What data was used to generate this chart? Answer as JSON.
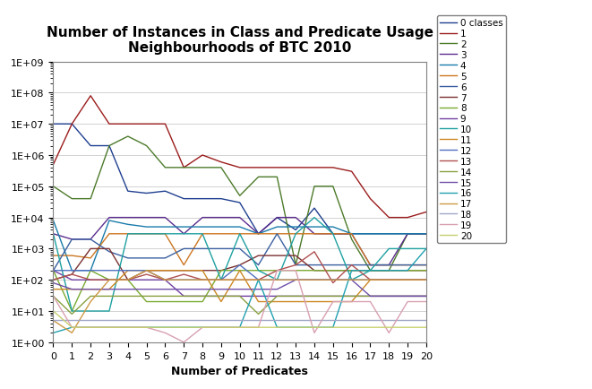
{
  "title": "Number of Instances in Class and Predicate Usage\nNeighbourhoods of BTC 2010",
  "xlabel": "Number of Predicates",
  "xlim": [
    0,
    20
  ],
  "ylim": [
    1,
    1000000000.0
  ],
  "x": [
    0,
    1,
    2,
    3,
    4,
    5,
    6,
    7,
    8,
    9,
    10,
    11,
    12,
    13,
    14,
    15,
    16,
    17,
    18,
    19,
    20
  ],
  "series_order": [
    "0 classes",
    "1",
    "2",
    "3",
    "4",
    "5",
    "6",
    "7",
    "8",
    "9",
    "10",
    "11",
    "12",
    "13",
    "14",
    "15",
    "16",
    "17",
    "18",
    "19",
    "20"
  ],
  "series": {
    "0 classes": {
      "color": "#1F3F8F",
      "data": [
        10000000.0,
        10000000.0,
        2000000.0,
        2000000.0,
        70000.0,
        60000.0,
        70000.0,
        40000.0,
        40000.0,
        40000.0,
        30000.0,
        3000.0,
        10000.0,
        4000.0,
        20000.0,
        3000.0,
        3000.0,
        3000.0,
        3000.0,
        3000.0,
        3000.0
      ]
    },
    "1": {
      "color": "#9B1C1C",
      "data": [
        500000.0,
        10000000.0,
        80000000.0,
        10000000.0,
        10000000.0,
        10000000.0,
        10000000.0,
        400000.0,
        1000000.0,
        600000.0,
        400000.0,
        400000.0,
        400000.0,
        400000.0,
        400000.0,
        400000.0,
        300000.0,
        40000.0,
        10000.0,
        10000.0,
        15000.0
      ]
    },
    "2": {
      "color": "#4C7A2A",
      "data": [
        100000.0,
        40000.0,
        40000.0,
        2000000.0,
        4000000.0,
        2000000.0,
        400000.0,
        400000.0,
        400000.0,
        400000.0,
        50000.0,
        200000.0,
        200000.0,
        300.0,
        100000.0,
        100000.0,
        2000.0,
        200.0,
        200.0,
        3000.0,
        3000.0
      ]
    },
    "3": {
      "color": "#5B2D8E",
      "data": [
        3000.0,
        2000.0,
        2000.0,
        10000.0,
        10000.0,
        10000.0,
        10000.0,
        3000.0,
        10000.0,
        10000.0,
        10000.0,
        3000.0,
        10000.0,
        10000.0,
        3000.0,
        3000.0,
        3000.0,
        300.0,
        300.0,
        3000.0,
        3000.0
      ]
    },
    "4": {
      "color": "#1A7BAA",
      "data": [
        8000.0,
        200.0,
        200.0,
        8000.0,
        6000.0,
        5000.0,
        5000.0,
        5000.0,
        5000.0,
        5000.0,
        5000.0,
        3000.0,
        5000.0,
        5000.0,
        5000.0,
        5000.0,
        3000.0,
        3000.0,
        3000.0,
        3000.0,
        3000.0
      ]
    },
    "5": {
      "color": "#CC7722",
      "data": [
        600.0,
        600.0,
        500.0,
        3000.0,
        3000.0,
        3000.0,
        3000.0,
        300.0,
        3000.0,
        3000.0,
        3000.0,
        3000.0,
        3000.0,
        3000.0,
        3000.0,
        3000.0,
        3000.0,
        300.0,
        300.0,
        300.0,
        300.0
      ]
    },
    "6": {
      "color": "#3A5FA0",
      "data": [
        200.0,
        2000.0,
        2000.0,
        800.0,
        500.0,
        500.0,
        500.0,
        1000.0,
        1000.0,
        1000.0,
        1000.0,
        300.0,
        3000.0,
        300.0,
        300.0,
        300.0,
        300.0,
        300.0,
        300.0,
        300.0,
        300.0
      ]
    },
    "7": {
      "color": "#7B3030",
      "data": [
        100.0,
        150.0,
        1000.0,
        1000.0,
        100.0,
        200.0,
        200.0,
        200.0,
        200.0,
        200.0,
        300.0,
        600.0,
        600.0,
        600.0,
        200.0,
        200.0,
        200.0,
        200.0,
        200.0,
        200.0,
        200.0
      ]
    },
    "8": {
      "color": "#7AAA30",
      "data": [
        200.0,
        10.0,
        200.0,
        100.0,
        100.0,
        20.0,
        20.0,
        20.0,
        20.0,
        200.0,
        200.0,
        200.0,
        200.0,
        200.0,
        200.0,
        200.0,
        200.0,
        200.0,
        200.0,
        200.0,
        200.0
      ]
    },
    "9": {
      "color": "#7040A0",
      "data": [
        200.0,
        100.0,
        100.0,
        100.0,
        100.0,
        100.0,
        100.0,
        30.0,
        30.0,
        30.0,
        30.0,
        30.0,
        30.0,
        30.0,
        30.0,
        30.0,
        30.0,
        30.0,
        30.0,
        30.0,
        30.0
      ]
    },
    "10": {
      "color": "#1FA0A0",
      "data": [
        3000.0,
        10.0,
        10.0,
        10.0,
        3000.0,
        3000.0,
        3000.0,
        3000.0,
        3000.0,
        100.0,
        3000.0,
        200.0,
        100.0,
        3000.0,
        10000.0,
        3000.0,
        100.0,
        200.0,
        1000.0,
        1000.0,
        1000.0
      ]
    },
    "11": {
      "color": "#CC8822",
      "data": [
        50.0,
        50.0,
        50.0,
        50.0,
        200.0,
        200.0,
        200.0,
        200.0,
        200.0,
        20.0,
        200.0,
        20.0,
        20.0,
        20.0,
        20.0,
        20.0,
        20.0,
        100.0,
        100.0,
        100.0,
        100.0
      ]
    },
    "12": {
      "color": "#5070C0",
      "data": [
        200.0,
        200.0,
        200.0,
        200.0,
        200.0,
        200.0,
        100.0,
        100.0,
        100.0,
        100.0,
        300.0,
        100.0,
        100.0,
        100.0,
        100.0,
        100.0,
        100.0,
        100.0,
        100.0,
        100.0,
        100.0
      ]
    },
    "13": {
      "color": "#B05050",
      "data": [
        100.0,
        150.0,
        100.0,
        100.0,
        100.0,
        150.0,
        100.0,
        150.0,
        100.0,
        100.0,
        100.0,
        100.0,
        200.0,
        300.0,
        800.0,
        80.0,
        300.0,
        100.0,
        100.0,
        100.0,
        100.0
      ]
    },
    "14": {
      "color": "#88A040",
      "data": [
        30.0,
        8.0,
        30.0,
        30.0,
        30.0,
        30.0,
        30.0,
        30.0,
        30.0,
        30.0,
        30.0,
        8.0,
        30.0,
        30.0,
        30.0,
        30.0,
        30.0,
        30.0,
        30.0,
        30.0,
        30.0
      ]
    },
    "15": {
      "color": "#7050A8",
      "data": [
        80.0,
        50.0,
        50.0,
        50.0,
        50.0,
        50.0,
        50.0,
        50.0,
        50.0,
        50.0,
        50.0,
        50.0,
        50.0,
        100.0,
        100.0,
        100.0,
        100.0,
        30.0,
        30.0,
        30.0,
        30.0
      ]
    },
    "16": {
      "color": "#20A0B0",
      "data": [
        2.0,
        3.0,
        3.0,
        3.0,
        3.0,
        3.0,
        3.0,
        3.0,
        3.0,
        3.0,
        3.0,
        100.0,
        3.0,
        3.0,
        3.0,
        3.0,
        200.0,
        200.0,
        200.0,
        200.0,
        1000.0
      ]
    },
    "17": {
      "color": "#CC9944",
      "data": [
        5.0,
        2.0,
        20.0,
        100.0,
        100.0,
        200.0,
        100.0,
        100.0,
        100.0,
        100.0,
        100.0,
        100.0,
        100.0,
        100.0,
        100.0,
        100.0,
        100.0,
        100.0,
        100.0,
        100.0,
        100.0
      ]
    },
    "18": {
      "color": "#A0A8C8",
      "data": [
        5.0,
        5.0,
        5.0,
        5.0,
        5.0,
        5.0,
        5.0,
        5.0,
        5.0,
        5.0,
        5.0,
        5.0,
        5.0,
        5.0,
        5.0,
        5.0,
        5.0,
        5.0,
        5.0,
        5.0,
        5.0
      ]
    },
    "19": {
      "color": "#D8A0B0",
      "data": [
        30.0,
        3.0,
        3.0,
        3.0,
        3.0,
        3.0,
        2.0,
        1.0,
        3.0,
        3.0,
        3.0,
        3.0,
        200.0,
        200.0,
        2.0,
        20.0,
        20.0,
        20.0,
        2.0,
        20.0,
        20.0
      ]
    },
    "20": {
      "color": "#C8D070",
      "data": [
        10.0,
        3.0,
        3.0,
        3.0,
        3.0,
        3.0,
        3.0,
        3.0,
        3.0,
        3.0,
        3.0,
        3.0,
        3.0,
        3.0,
        3.0,
        3.0,
        3.0,
        3.0,
        3.0,
        3.0,
        3.0
      ]
    }
  },
  "bg_color": "#FFFFFF",
  "plot_bg_color": "#FFFFFF",
  "grid_color": "#C0C0C0",
  "title_fontsize": 11,
  "axis_label_fontsize": 9,
  "tick_fontsize": 8,
  "legend_fontsize": 7.5
}
